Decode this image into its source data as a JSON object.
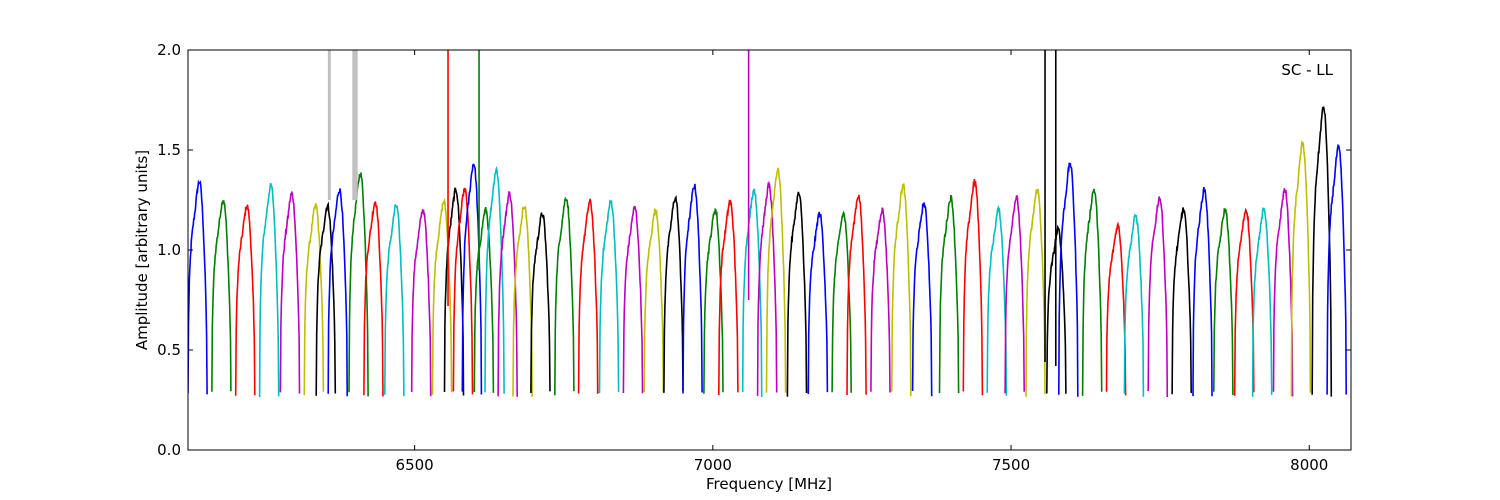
{
  "chart_data": {
    "type": "line",
    "title": "",
    "xlabel": "Frequency [MHz]",
    "ylabel": "Amplitude [arbitrary units]",
    "annotation": "SC - LL",
    "annotation_position": "top-right",
    "xlim": [
      6120,
      8070
    ],
    "ylim": [
      0.0,
      2.0
    ],
    "x_ticks": [
      6500,
      7000,
      7500,
      8000
    ],
    "x_tick_labels": [
      "6500",
      "7000",
      "7500",
      "8000"
    ],
    "y_ticks": [
      0.0,
      0.5,
      1.0,
      1.5,
      2.0
    ],
    "y_tick_labels": [
      "0.0",
      "0.5",
      "1.0",
      "1.5",
      "2.0"
    ],
    "grid": false,
    "legend": "none",
    "channel_width_mhz": 32,
    "color_cycle": [
      "#0000ff",
      "#008000",
      "#ff0000",
      "#00bfbf",
      "#bf00bf",
      "#bfbf00",
      "#000000"
    ],
    "background_series_color": "#c0c0c0",
    "series": [
      {
        "start": 6120,
        "color": "#0000ff",
        "peak": 1.34
      },
      {
        "start": 6160,
        "color": "#008000",
        "peak": 1.25
      },
      {
        "start": 6200,
        "color": "#ff0000",
        "peak": 1.22
      },
      {
        "start": 6240,
        "color": "#00bfbf",
        "peak": 1.32
      },
      {
        "start": 6275,
        "color": "#bf00bf",
        "peak": 1.28
      },
      {
        "start": 6315,
        "color": "#bfbf00",
        "peak": 1.22
      },
      {
        "start": 6335,
        "color": "#000000",
        "peak": 1.22
      },
      {
        "start": 6355,
        "color": "#0000ff",
        "peak": 1.3
      },
      {
        "start": 6390,
        "color": "#008000",
        "peak": 1.38
      },
      {
        "start": 6415,
        "color": "#ff0000",
        "peak": 1.24
      },
      {
        "start": 6450,
        "color": "#00bfbf",
        "peak": 1.22
      },
      {
        "start": 6495,
        "color": "#bf00bf",
        "peak": 1.2
      },
      {
        "start": 6530,
        "color": "#bfbf00",
        "peak": 1.24
      },
      {
        "start": 6550,
        "color": "#000000",
        "peak": 1.3
      },
      {
        "start": 6565,
        "color": "#ff0000",
        "peak": 1.3
      },
      {
        "start": 6580,
        "color": "#0000ff",
        "peak": 1.43
      },
      {
        "start": 6600,
        "color": "#008000",
        "peak": 1.2
      },
      {
        "start": 6618,
        "color": "#00bfbf",
        "peak": 1.4
      },
      {
        "start": 6640,
        "color": "#bf00bf",
        "peak": 1.28
      },
      {
        "start": 6665,
        "color": "#bfbf00",
        "peak": 1.22
      },
      {
        "start": 6695,
        "color": "#000000",
        "peak": 1.18
      },
      {
        "start": 6735,
        "color": "#008000",
        "peak": 1.26
      },
      {
        "start": 6775,
        "color": "#ff0000",
        "peak": 1.24
      },
      {
        "start": 6810,
        "color": "#00bfbf",
        "peak": 1.24
      },
      {
        "start": 6850,
        "color": "#bf00bf",
        "peak": 1.21
      },
      {
        "start": 6885,
        "color": "#bfbf00",
        "peak": 1.2
      },
      {
        "start": 6918,
        "color": "#000000",
        "peak": 1.26
      },
      {
        "start": 6950,
        "color": "#0000ff",
        "peak": 1.32
      },
      {
        "start": 6985,
        "color": "#008000",
        "peak": 1.2
      },
      {
        "start": 7010,
        "color": "#ff0000",
        "peak": 1.24
      },
      {
        "start": 7050,
        "color": "#00bfbf",
        "peak": 1.3
      },
      {
        "start": 7075,
        "color": "#bf00bf",
        "peak": 1.32
      },
      {
        "start": 7090,
        "color": "#bfbf00",
        "peak": 1.4
      },
      {
        "start": 7125,
        "color": "#000000",
        "peak": 1.28
      },
      {
        "start": 7160,
        "color": "#0000ff",
        "peak": 1.18
      },
      {
        "start": 7200,
        "color": "#008000",
        "peak": 1.18
      },
      {
        "start": 7225,
        "color": "#ff0000",
        "peak": 1.27
      },
      {
        "start": 7265,
        "color": "#bf00bf",
        "peak": 1.2
      },
      {
        "start": 7300,
        "color": "#bfbf00",
        "peak": 1.32
      },
      {
        "start": 7335,
        "color": "#0000ff",
        "peak": 1.23
      },
      {
        "start": 7380,
        "color": "#008000",
        "peak": 1.26
      },
      {
        "start": 7420,
        "color": "#ff0000",
        "peak": 1.34
      },
      {
        "start": 7460,
        "color": "#00bfbf",
        "peak": 1.2
      },
      {
        "start": 7490,
        "color": "#bf00bf",
        "peak": 1.26
      },
      {
        "start": 7525,
        "color": "#bfbf00",
        "peak": 1.3
      },
      {
        "start": 7560,
        "color": "#000000",
        "peak": 1.1
      },
      {
        "start": 7580,
        "color": "#0000ff",
        "peak": 1.43
      },
      {
        "start": 7620,
        "color": "#008000",
        "peak": 1.3
      },
      {
        "start": 7660,
        "color": "#ff0000",
        "peak": 1.12
      },
      {
        "start": 7690,
        "color": "#00bfbf",
        "peak": 1.17
      },
      {
        "start": 7730,
        "color": "#bf00bf",
        "peak": 1.26
      },
      {
        "start": 7770,
        "color": "#000000",
        "peak": 1.2
      },
      {
        "start": 7805,
        "color": "#0000ff",
        "peak": 1.3
      },
      {
        "start": 7840,
        "color": "#008000",
        "peak": 1.2
      },
      {
        "start": 7875,
        "color": "#ff0000",
        "peak": 1.2
      },
      {
        "start": 7905,
        "color": "#00bfbf",
        "peak": 1.2
      },
      {
        "start": 7940,
        "color": "#bf00bf",
        "peak": 1.3
      },
      {
        "start": 7970,
        "color": "#bfbf00",
        "peak": 1.53
      },
      {
        "start": 8005,
        "color": "#000000",
        "peak": 1.71
      },
      {
        "start": 8030,
        "color": "#0000ff",
        "peak": 1.51
      }
    ],
    "spikes": [
      {
        "x": 6556,
        "top": 2.0,
        "bottom": 0.72,
        "color": "#ff0000"
      },
      {
        "x": 6608,
        "top": 2.0,
        "bottom": 0.9,
        "color": "#008000"
      },
      {
        "x": 7060,
        "top": 2.0,
        "bottom": 0.75,
        "color": "#bf00bf"
      },
      {
        "x": 7557,
        "top": 2.0,
        "bottom": 0.44,
        "color": "#000000"
      },
      {
        "x": 7575,
        "top": 2.0,
        "bottom": 0.42,
        "color": "#000000"
      },
      {
        "x": 6357,
        "top": 2.0,
        "bottom": 1.25,
        "color": "#c0c0c0"
      },
      {
        "x": 6398,
        "top": 2.0,
        "bottom": 1.25,
        "color": "#c0c0c0"
      },
      {
        "x": 6402,
        "top": 2.0,
        "bottom": 1.25,
        "color": "#c0c0c0"
      }
    ]
  }
}
